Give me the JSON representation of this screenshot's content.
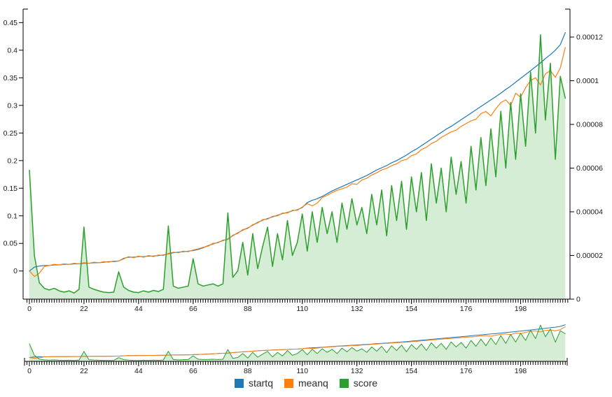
{
  "chart_data": {
    "type": "line",
    "title": "",
    "xlabel": "",
    "ylabel_left": "",
    "ylabel_right": "",
    "grid": false,
    "has_range_selector": true,
    "legend_position": "bottom",
    "x": [
      0,
      2,
      4,
      6,
      8,
      10,
      12,
      14,
      16,
      18,
      20,
      22,
      24,
      26,
      28,
      30,
      32,
      34,
      36,
      38,
      40,
      42,
      44,
      46,
      48,
      50,
      52,
      54,
      56,
      58,
      60,
      62,
      64,
      66,
      68,
      70,
      72,
      74,
      76,
      78,
      80,
      82,
      84,
      86,
      88,
      90,
      92,
      94,
      96,
      98,
      100,
      102,
      104,
      106,
      108,
      110,
      112,
      114,
      116,
      118,
      120,
      122,
      124,
      126,
      128,
      130,
      132,
      134,
      136,
      138,
      140,
      142,
      144,
      146,
      148,
      150,
      152,
      154,
      156,
      158,
      160,
      162,
      164,
      166,
      168,
      170,
      172,
      174,
      176,
      178,
      180,
      182,
      184,
      186,
      188,
      190,
      192,
      194,
      196,
      198,
      200,
      202,
      204,
      206,
      208,
      210,
      212,
      214,
      216
    ],
    "series": [
      {
        "name": "startq",
        "color": "#1f77b4",
        "y_axis": "left",
        "fill": false,
        "values": [
          0.0,
          0.007,
          0.009,
          0.01,
          0.01,
          0.011,
          0.011,
          0.012,
          0.012,
          0.013,
          0.013,
          0.014,
          0.014,
          0.015,
          0.015,
          0.016,
          0.017,
          0.017,
          0.018,
          0.023,
          0.025,
          0.025,
          0.026,
          0.026,
          0.027,
          0.027,
          0.028,
          0.029,
          0.031,
          0.033,
          0.034,
          0.035,
          0.036,
          0.037,
          0.039,
          0.042,
          0.046,
          0.049,
          0.052,
          0.055,
          0.058,
          0.064,
          0.069,
          0.074,
          0.078,
          0.083,
          0.088,
          0.092,
          0.095,
          0.098,
          0.101,
          0.104,
          0.106,
          0.109,
          0.111,
          0.115,
          0.124,
          0.128,
          0.131,
          0.135,
          0.14,
          0.145,
          0.149,
          0.153,
          0.157,
          0.161,
          0.165,
          0.169,
          0.173,
          0.178,
          0.183,
          0.187,
          0.191,
          0.196,
          0.2,
          0.205,
          0.21,
          0.216,
          0.221,
          0.227,
          0.233,
          0.239,
          0.245,
          0.251,
          0.257,
          0.262,
          0.268,
          0.274,
          0.28,
          0.286,
          0.292,
          0.298,
          0.304,
          0.31,
          0.316,
          0.322,
          0.329,
          0.335,
          0.342,
          0.349,
          0.356,
          0.363,
          0.37,
          0.377,
          0.385,
          0.392,
          0.4,
          0.41,
          0.432
        ]
      },
      {
        "name": "meanq",
        "color": "#ff7f0e",
        "y_axis": "left",
        "fill": false,
        "values": [
          0.0,
          -0.01,
          -0.004,
          0.008,
          0.01,
          0.012,
          0.011,
          0.013,
          0.012,
          0.014,
          0.013,
          0.015,
          0.014,
          0.016,
          0.015,
          0.017,
          0.016,
          0.018,
          0.018,
          0.022,
          0.026,
          0.024,
          0.027,
          0.025,
          0.028,
          0.026,
          0.029,
          0.028,
          0.032,
          0.034,
          0.033,
          0.036,
          0.035,
          0.038,
          0.04,
          0.043,
          0.045,
          0.05,
          0.051,
          0.056,
          0.057,
          0.065,
          0.068,
          0.075,
          0.077,
          0.084,
          0.087,
          0.093,
          0.094,
          0.099,
          0.1,
          0.105,
          0.105,
          0.11,
          0.11,
          0.116,
          0.122,
          0.118,
          0.123,
          0.133,
          0.137,
          0.142,
          0.146,
          0.149,
          0.152,
          0.158,
          0.157,
          0.165,
          0.168,
          0.174,
          0.178,
          0.183,
          0.186,
          0.191,
          0.194,
          0.2,
          0.202,
          0.209,
          0.212,
          0.22,
          0.224,
          0.231,
          0.235,
          0.242,
          0.247,
          0.252,
          0.255,
          0.262,
          0.267,
          0.272,
          0.275,
          0.285,
          0.289,
          0.281,
          0.294,
          0.305,
          0.31,
          0.3,
          0.322,
          0.315,
          0.332,
          0.345,
          0.35,
          0.337,
          0.357,
          0.363,
          0.351,
          0.368,
          0.405
        ]
      },
      {
        "name": "score",
        "color": "#2ca02c",
        "y_axis": "right",
        "fill": true,
        "fill_color": "rgba(44,160,44,0.2)",
        "values": [
          5.9e-05,
          2e-05,
          7.5e-06,
          5e-06,
          4.2e-06,
          5e-06,
          3.8e-06,
          3.2e-06,
          3.8e-06,
          2.8e-06,
          4.5e-06,
          3.3e-05,
          5.5e-06,
          4.5e-06,
          3.8e-06,
          3.2e-06,
          3e-06,
          3.2e-06,
          1.25e-05,
          5.5e-06,
          4e-06,
          3.2e-06,
          3e-06,
          3.8e-06,
          3.2e-06,
          4e-06,
          3.5e-06,
          4.5e-06,
          3.35e-05,
          6e-06,
          5e-06,
          5.5e-06,
          6e-06,
          1.85e-05,
          7e-06,
          6e-06,
          6.5e-06,
          7e-06,
          6e-06,
          7e-06,
          3.95e-05,
          1e-05,
          1.3e-05,
          2.6e-05,
          1.1e-05,
          3e-05,
          1.4e-05,
          2.4e-05,
          3.3e-05,
          1.5e-05,
          3e-05,
          1.8e-05,
          3.6e-05,
          2e-05,
          2.6e-05,
          3.9e-05,
          2.2e-05,
          4e-05,
          2.6e-05,
          4.2e-05,
          3e-05,
          4e-05,
          2.6e-05,
          4.4e-05,
          3.2e-05,
          4.6e-05,
          3.4e-05,
          4.2e-05,
          3e-05,
          4.8e-05,
          3.4e-05,
          5e-05,
          2.9e-05,
          5.2e-05,
          3.6e-05,
          5.4e-05,
          3.2e-05,
          5.6e-05,
          4e-05,
          5.8e-05,
          3.6e-05,
          6.2e-05,
          4.4e-05,
          6e-05,
          4e-05,
          6.5e-05,
          4.8e-05,
          6.3e-05,
          4.4e-05,
          7e-05,
          5e-05,
          7.4e-05,
          5.2e-05,
          7.8e-05,
          5.6e-05,
          8.6e-05,
          6e-05,
          9e-05,
          6.4e-05,
          9.4e-05,
          7e-05,
          0.000104,
          7.6e-05,
          0.000121,
          8.2e-05,
          0.000108,
          6.4e-05,
          0.000102,
          9.2e-05
        ]
      }
    ],
    "axes": {
      "x": {
        "range": [
          -2.5,
          218
        ],
        "minor_tick_step": 1,
        "major_ticks": [
          0,
          22,
          44,
          66,
          88,
          110,
          132,
          154,
          176,
          198
        ],
        "major_tick_labels": [
          "0",
          "22",
          "44",
          "66",
          "88",
          "110",
          "132",
          "154",
          "176",
          "198"
        ]
      },
      "y_left": {
        "range": [
          -0.051,
          0.4745
        ],
        "ticks": [
          0,
          0.05,
          0.1,
          0.15,
          0.2,
          0.25,
          0.3,
          0.35,
          0.4,
          0.45
        ],
        "tick_labels": [
          "0",
          "0.05",
          "0.1",
          "0.15",
          "0.2",
          "0.25",
          "0.3",
          "0.35",
          "0.4",
          "0.45"
        ]
      },
      "y_right": {
        "range": [
          0,
          0.0001328
        ],
        "ticks": [
          0,
          2e-05,
          4e-05,
          6e-05,
          8e-05,
          0.0001,
          0.00012
        ],
        "tick_labels": [
          "0",
          "0.00002",
          "0.00004",
          "0.00006",
          "0.00008",
          "0.0001",
          "0.00012"
        ]
      }
    }
  },
  "legend": {
    "entries": [
      {
        "label": "startq",
        "color": "#1f77b4"
      },
      {
        "label": "meanq",
        "color": "#ff7f0e"
      },
      {
        "label": "score",
        "color": "#2ca02c"
      }
    ]
  },
  "colors": {
    "axis": "#000000",
    "tick_label": "#1a1a1a",
    "background": "#ffffff",
    "score_fill": "rgba(44,160,44,0.2)"
  }
}
